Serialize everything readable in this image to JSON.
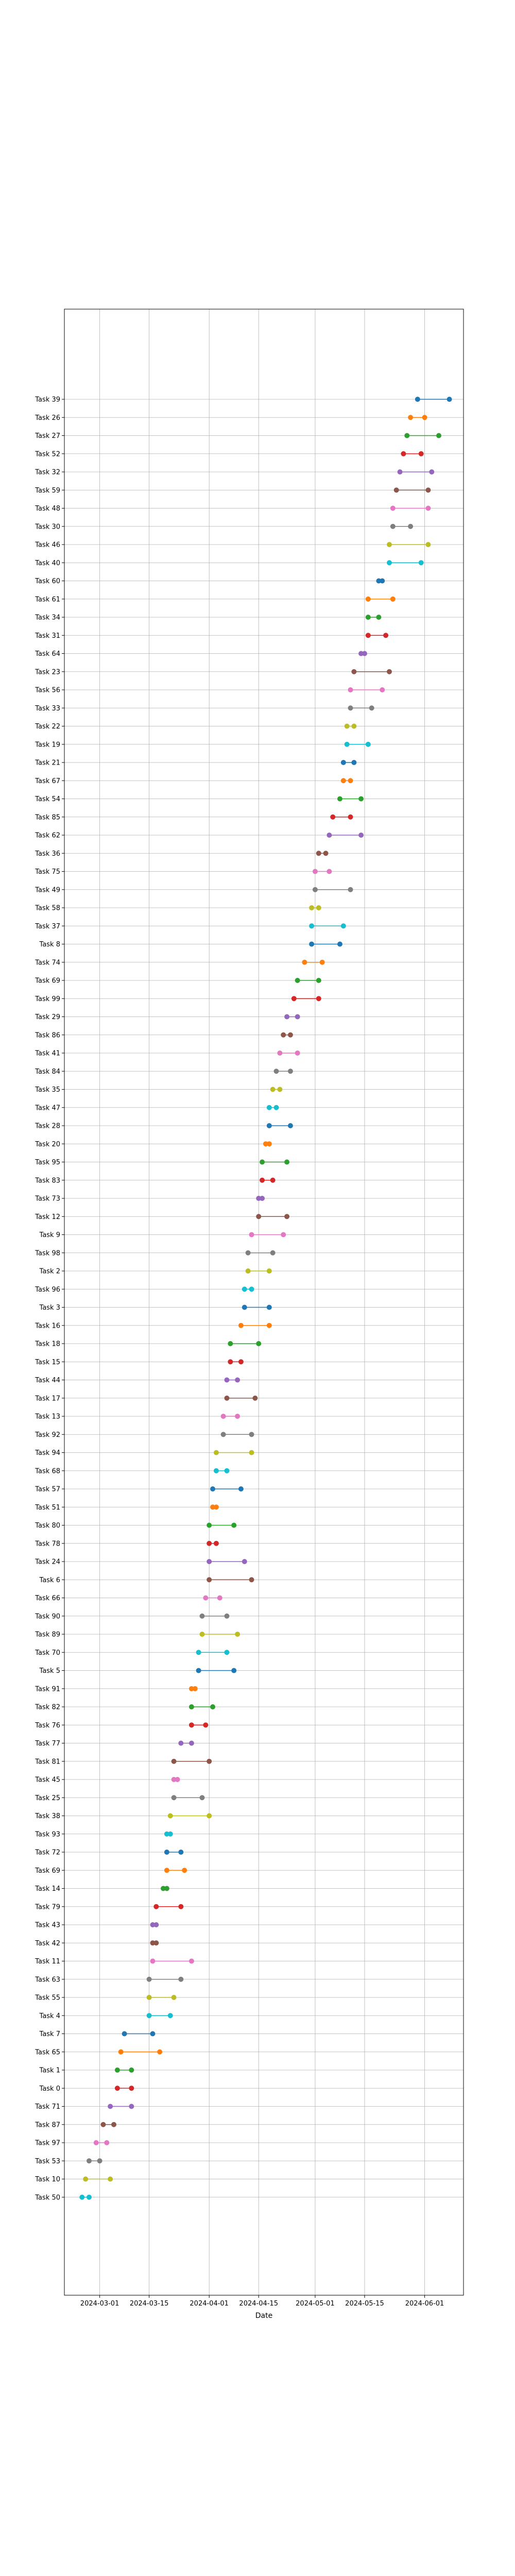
{
  "chart_data": {
    "type": "dumbbell",
    "title": "",
    "xlabel": "Date",
    "ylabel": "",
    "grid": true,
    "legend": "none",
    "x_ticks": [
      "2024-03-01",
      "2024-03-15",
      "2024-04-01",
      "2024-04-15",
      "2024-05-01",
      "2024-05-15",
      "2024-06-01"
    ],
    "xlim": [
      "2024-02-20",
      "2024-06-12"
    ],
    "palette": [
      "#1f77b4",
      "#ff7f0e",
      "#2ca02c",
      "#d62728",
      "#9467bd",
      "#8c564b",
      "#e377c2",
      "#7f7f7f",
      "#bcbd22",
      "#17becf"
    ],
    "tasks": [
      {
        "name": "Task 39",
        "start": "2024-05-30",
        "end": "2024-06-08"
      },
      {
        "name": "Task 26",
        "start": "2024-05-28",
        "end": "2024-06-01"
      },
      {
        "name": "Task 27",
        "start": "2024-05-27",
        "end": "2024-06-05"
      },
      {
        "name": "Task 52",
        "start": "2024-05-26",
        "end": "2024-05-31"
      },
      {
        "name": "Task 32",
        "start": "2024-05-25",
        "end": "2024-06-03"
      },
      {
        "name": "Task 59",
        "start": "2024-05-24",
        "end": "2024-06-02"
      },
      {
        "name": "Task 48",
        "start": "2024-05-23",
        "end": "2024-06-02"
      },
      {
        "name": "Task 30",
        "start": "2024-05-23",
        "end": "2024-05-28"
      },
      {
        "name": "Task 46",
        "start": "2024-05-22",
        "end": "2024-06-02"
      },
      {
        "name": "Task 40",
        "start": "2024-05-22",
        "end": "2024-05-31"
      },
      {
        "name": "Task 60",
        "start": "2024-05-19",
        "end": "2024-05-20"
      },
      {
        "name": "Task 61",
        "start": "2024-05-16",
        "end": "2024-05-23"
      },
      {
        "name": "Task 34",
        "start": "2024-05-16",
        "end": "2024-05-19"
      },
      {
        "name": "Task 31",
        "start": "2024-05-16",
        "end": "2024-05-21"
      },
      {
        "name": "Task 64",
        "start": "2024-05-14",
        "end": "2024-05-15"
      },
      {
        "name": "Task 23",
        "start": "2024-05-12",
        "end": "2024-05-22"
      },
      {
        "name": "Task 56",
        "start": "2024-05-11",
        "end": "2024-05-20"
      },
      {
        "name": "Task 33",
        "start": "2024-05-11",
        "end": "2024-05-17"
      },
      {
        "name": "Task 22",
        "start": "2024-05-10",
        "end": "2024-05-12"
      },
      {
        "name": "Task 19",
        "start": "2024-05-10",
        "end": "2024-05-16"
      },
      {
        "name": "Task 21",
        "start": "2024-05-09",
        "end": "2024-05-12"
      },
      {
        "name": "Task 67",
        "start": "2024-05-09",
        "end": "2024-05-11"
      },
      {
        "name": "Task 54",
        "start": "2024-05-08",
        "end": "2024-05-14"
      },
      {
        "name": "Task 85",
        "start": "2024-05-06",
        "end": "2024-05-11"
      },
      {
        "name": "Task 62",
        "start": "2024-05-05",
        "end": "2024-05-14"
      },
      {
        "name": "Task 36",
        "start": "2024-05-02",
        "end": "2024-05-04"
      },
      {
        "name": "Task 75",
        "start": "2024-05-01",
        "end": "2024-05-05"
      },
      {
        "name": "Task 49",
        "start": "2024-05-01",
        "end": "2024-05-11"
      },
      {
        "name": "Task 58",
        "start": "2024-04-30",
        "end": "2024-05-02"
      },
      {
        "name": "Task 37",
        "start": "2024-04-30",
        "end": "2024-05-09"
      },
      {
        "name": "Task 8",
        "start": "2024-04-30",
        "end": "2024-05-08"
      },
      {
        "name": "Task 74",
        "start": "2024-04-28",
        "end": "2024-05-03"
      },
      {
        "name": "Task 69",
        "start": "2024-04-26",
        "end": "2024-05-02"
      },
      {
        "name": "Task 99",
        "start": "2024-04-25",
        "end": "2024-05-02"
      },
      {
        "name": "Task 29",
        "start": "2024-04-23",
        "end": "2024-04-26"
      },
      {
        "name": "Task 86",
        "start": "2024-04-22",
        "end": "2024-04-24"
      },
      {
        "name": "Task 41",
        "start": "2024-04-21",
        "end": "2024-04-26"
      },
      {
        "name": "Task 84",
        "start": "2024-04-20",
        "end": "2024-04-24"
      },
      {
        "name": "Task 35",
        "start": "2024-04-19",
        "end": "2024-04-21"
      },
      {
        "name": "Task 47",
        "start": "2024-04-18",
        "end": "2024-04-20"
      },
      {
        "name": "Task 28",
        "start": "2024-04-18",
        "end": "2024-04-24"
      },
      {
        "name": "Task 20",
        "start": "2024-04-17",
        "end": "2024-04-18"
      },
      {
        "name": "Task 95",
        "start": "2024-04-16",
        "end": "2024-04-23"
      },
      {
        "name": "Task 83",
        "start": "2024-04-16",
        "end": "2024-04-19"
      },
      {
        "name": "Task 73",
        "start": "2024-04-15",
        "end": "2024-04-16"
      },
      {
        "name": "Task 12",
        "start": "2024-04-15",
        "end": "2024-04-23"
      },
      {
        "name": "Task 9",
        "start": "2024-04-13",
        "end": "2024-04-22"
      },
      {
        "name": "Task 98",
        "start": "2024-04-12",
        "end": "2024-04-19"
      },
      {
        "name": "Task 2",
        "start": "2024-04-12",
        "end": "2024-04-18"
      },
      {
        "name": "Task 96",
        "start": "2024-04-11",
        "end": "2024-04-13"
      },
      {
        "name": "Task 3",
        "start": "2024-04-11",
        "end": "2024-04-18"
      },
      {
        "name": "Task 16",
        "start": "2024-04-10",
        "end": "2024-04-18"
      },
      {
        "name": "Task 18",
        "start": "2024-04-07",
        "end": "2024-04-15"
      },
      {
        "name": "Task 15",
        "start": "2024-04-07",
        "end": "2024-04-10"
      },
      {
        "name": "Task 44",
        "start": "2024-04-06",
        "end": "2024-04-09"
      },
      {
        "name": "Task 17",
        "start": "2024-04-06",
        "end": "2024-04-14"
      },
      {
        "name": "Task 13",
        "start": "2024-04-05",
        "end": "2024-04-09"
      },
      {
        "name": "Task 92",
        "start": "2024-04-05",
        "end": "2024-04-13"
      },
      {
        "name": "Task 94",
        "start": "2024-04-03",
        "end": "2024-04-13"
      },
      {
        "name": "Task 68",
        "start": "2024-04-03",
        "end": "2024-04-06"
      },
      {
        "name": "Task 57",
        "start": "2024-04-02",
        "end": "2024-04-10"
      },
      {
        "name": "Task 51",
        "start": "2024-04-02",
        "end": "2024-04-03"
      },
      {
        "name": "Task 80",
        "start": "2024-04-01",
        "end": "2024-04-08"
      },
      {
        "name": "Task 78",
        "start": "2024-04-01",
        "end": "2024-04-03"
      },
      {
        "name": "Task 24",
        "start": "2024-04-01",
        "end": "2024-04-11"
      },
      {
        "name": "Task 6",
        "start": "2024-04-01",
        "end": "2024-04-13"
      },
      {
        "name": "Task 66",
        "start": "2024-03-31",
        "end": "2024-04-04"
      },
      {
        "name": "Task 90",
        "start": "2024-03-30",
        "end": "2024-04-06"
      },
      {
        "name": "Task 89",
        "start": "2024-03-30",
        "end": "2024-04-09"
      },
      {
        "name": "Task 70",
        "start": "2024-03-29",
        "end": "2024-04-06"
      },
      {
        "name": "Task 5",
        "start": "2024-03-29",
        "end": "2024-04-08"
      },
      {
        "name": "Task 91",
        "start": "2024-03-27",
        "end": "2024-03-28"
      },
      {
        "name": "Task 82",
        "start": "2024-03-27",
        "end": "2024-04-02"
      },
      {
        "name": "Task 76",
        "start": "2024-03-27",
        "end": "2024-03-31"
      },
      {
        "name": "Task 77",
        "start": "2024-03-24",
        "end": "2024-03-27"
      },
      {
        "name": "Task 81",
        "start": "2024-03-22",
        "end": "2024-04-01"
      },
      {
        "name": "Task 45",
        "start": "2024-03-22",
        "end": "2024-03-23"
      },
      {
        "name": "Task 25",
        "start": "2024-03-22",
        "end": "2024-03-30"
      },
      {
        "name": "Task 38",
        "start": "2024-03-21",
        "end": "2024-04-01"
      },
      {
        "name": "Task 93",
        "start": "2024-03-20",
        "end": "2024-03-21"
      },
      {
        "name": "Task 72",
        "start": "2024-03-20",
        "end": "2024-03-24"
      },
      {
        "name": "Task 69",
        "start": "2024-03-20",
        "end": "2024-03-25"
      },
      {
        "name": "Task 14",
        "start": "2024-03-19",
        "end": "2024-03-20"
      },
      {
        "name": "Task 79",
        "start": "2024-03-17",
        "end": "2024-03-24"
      },
      {
        "name": "Task 43",
        "start": "2024-03-16",
        "end": "2024-03-17"
      },
      {
        "name": "Task 42",
        "start": "2024-03-16",
        "end": "2024-03-17"
      },
      {
        "name": "Task 11",
        "start": "2024-03-16",
        "end": "2024-03-27"
      },
      {
        "name": "Task 63",
        "start": "2024-03-15",
        "end": "2024-03-24"
      },
      {
        "name": "Task 55",
        "start": "2024-03-15",
        "end": "2024-03-22"
      },
      {
        "name": "Task 4",
        "start": "2024-03-15",
        "end": "2024-03-21"
      },
      {
        "name": "Task 7",
        "start": "2024-03-08",
        "end": "2024-03-16"
      },
      {
        "name": "Task 65",
        "start": "2024-03-07",
        "end": "2024-03-18"
      },
      {
        "name": "Task 1",
        "start": "2024-03-06",
        "end": "2024-03-10"
      },
      {
        "name": "Task 0",
        "start": "2024-03-06",
        "end": "2024-03-10"
      },
      {
        "name": "Task 71",
        "start": "2024-03-04",
        "end": "2024-03-10"
      },
      {
        "name": "Task 87",
        "start": "2024-03-02",
        "end": "2024-03-05"
      },
      {
        "name": "Task 97",
        "start": "2024-02-29",
        "end": "2024-03-03"
      },
      {
        "name": "Task 53",
        "start": "2024-02-27",
        "end": "2024-03-01"
      },
      {
        "name": "Task 10",
        "start": "2024-02-26",
        "end": "2024-03-04"
      },
      {
        "name": "Task 50",
        "start": "2024-02-25",
        "end": "2024-02-27"
      }
    ]
  }
}
